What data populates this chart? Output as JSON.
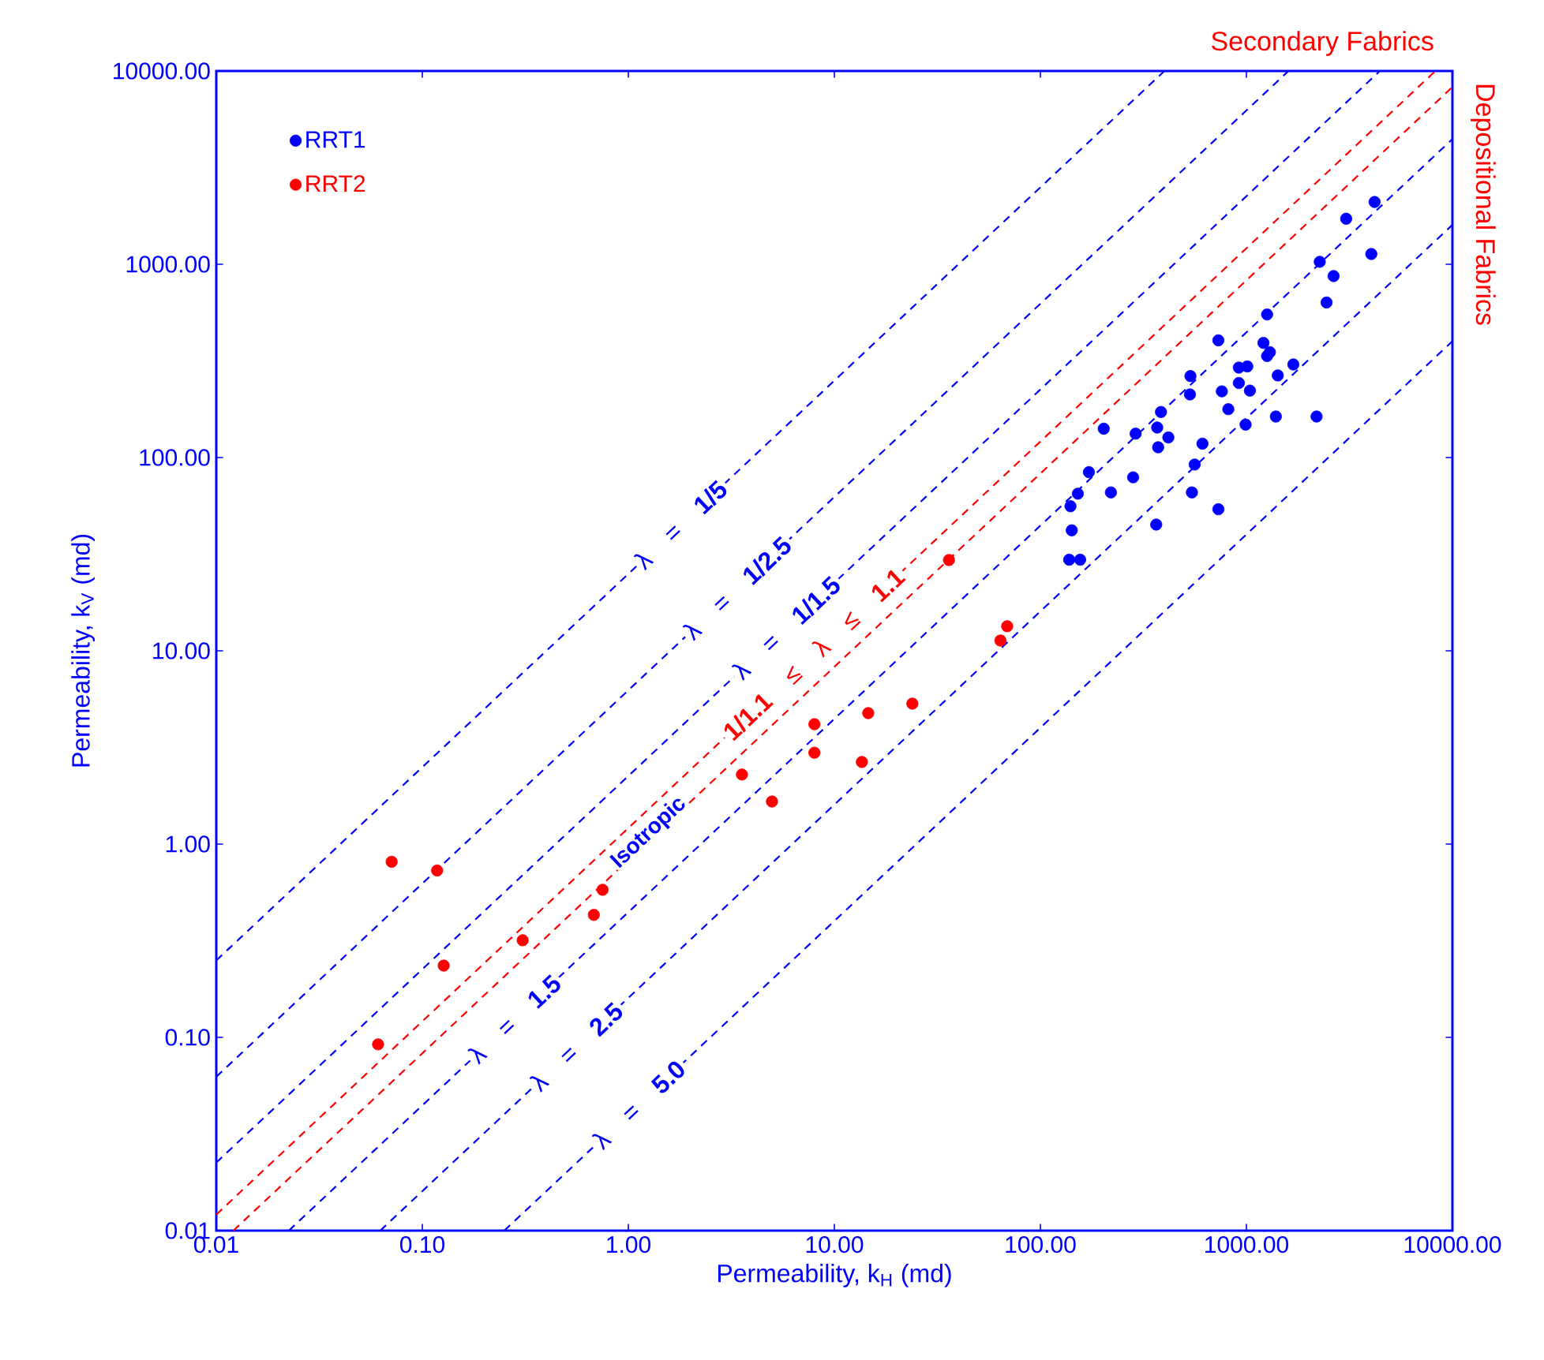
{
  "chart_data": {
    "type": "scatter",
    "xlabel": "Permeability, k$_{H}$ (md)",
    "ylabel": "Permeability, k$_{V}$ (md)",
    "log": "xy",
    "grid": false,
    "marker": "circle",
    "legend": "top left",
    "xlim": [
      0.01,
      10000
    ],
    "ylim": [
      0.01,
      10000
    ],
    "xticks": [
      {
        "value": 0.01,
        "label": "0.01"
      },
      {
        "value": 0.1,
        "label": "0.10"
      },
      {
        "value": 1,
        "label": "1.00"
      },
      {
        "value": 10,
        "label": "10.00"
      },
      {
        "value": 100,
        "label": "100.00"
      },
      {
        "value": 1000,
        "label": "1000.00"
      },
      {
        "value": 10000,
        "label": "10000.00"
      }
    ],
    "yticks": [
      {
        "value": 0.01,
        "label": "0.01"
      },
      {
        "value": 0.1,
        "label": "0.10"
      },
      {
        "value": 1,
        "label": "1.00"
      },
      {
        "value": 10,
        "label": "10.00"
      },
      {
        "value": 100,
        "label": "100.00"
      },
      {
        "value": 1000,
        "label": "1000.00"
      },
      {
        "value": 10000,
        "label": "10000.00"
      }
    ],
    "series": [
      {
        "name": "RRT1",
        "color": "#0000ff",
        "x": [
          4190,
          3050,
          4040,
          2270,
          2650,
          2450,
          1260,
          731,
          1210,
          1300,
          1260,
          1690,
          919,
          1010,
          535,
          1420,
          919,
          760,
          1040,
          532,
          817,
          385,
          1390,
          2190,
          991,
          203,
          290,
          369,
          418,
          373,
          612,
          561,
          172,
          282,
          152,
          220,
          544,
          140,
          731,
          142,
          365,
          138,
          156
        ],
        "values": [
          2100,
          1720,
          1130,
          1030,
          869,
          634,
          550,
          404,
          392,
          351,
          335,
          303,
          292,
          296,
          264,
          266,
          243,
          220,
          222,
          212,
          178,
          172,
          163,
          163,
          148,
          141,
          133,
          143,
          127,
          113,
          118,
          92,
          84,
          79,
          65,
          66,
          66,
          56,
          54,
          42,
          45,
          29.6,
          29.6
        ]
      },
      {
        "name": "RRT2",
        "color": "#ff0000",
        "x": [
          0.061,
          0.071,
          0.118,
          0.127,
          0.307,
          0.68,
          0.75,
          3.56,
          4.98,
          8.0,
          8.0,
          13.6,
          14.6,
          23.9,
          36,
          69,
          64
        ],
        "values": [
          0.092,
          0.81,
          0.73,
          0.235,
          0.318,
          0.43,
          0.58,
          2.29,
          1.66,
          4.17,
          2.97,
          2.66,
          4.76,
          5.33,
          29.5,
          13.4,
          11.3
        ]
      },
      {
        "type": "line",
        "name": "λ = **1/5**",
        "color": "#0000ff",
        "line_style": "dashed",
        "marker": "none",
        "x": [
          0.01,
          400
        ],
        "values": [
          0.25,
          10000
        ]
      },
      {
        "type": "line",
        "name": "λ = **1/2.5**",
        "color": "#0000ff",
        "line_style": "dashed",
        "marker": "none",
        "x": [
          0.01,
          1600
        ],
        "values": [
          0.0625,
          10000
        ]
      },
      {
        "type": "line",
        "name": "λ = **1/1.5**",
        "color": "#0000ff",
        "line_style": "dashed",
        "marker": "none",
        "x": [
          0.01,
          4444
        ],
        "values": [
          0.0225,
          10000
        ]
      },
      {
        "type": "line",
        "name": "**1/1.1** ≤ λ ≤ **1.1**",
        "color": "#ff0000",
        "line_style": "dashed",
        "marker": "none",
        "x": [
          0.01,
          8264
        ],
        "values": [
          0.0121,
          10000
        ]
      },
      {
        "type": "line",
        "color": "#ff0000",
        "line_style": "dashed",
        "marker": "none",
        "x": [
          0.0121,
          10000
        ],
        "values": [
          0.01,
          8264
        ]
      },
      {
        "type": "line",
        "name": "λ = **1.5**",
        "color": "#0000ff",
        "line_style": "dashed",
        "marker": "none",
        "x": [
          0.0225,
          10000
        ],
        "values": [
          0.01,
          4444
        ]
      },
      {
        "type": "line",
        "name": "λ = **2.5**",
        "color": "#0000ff",
        "line_style": "dashed",
        "marker": "none",
        "x": [
          0.0625,
          10000
        ],
        "values": [
          0.01,
          1600
        ]
      },
      {
        "type": "line",
        "name": "λ = **5.0**",
        "color": "#0000ff",
        "line_style": "dashed",
        "marker": "none",
        "x": [
          0.25,
          10000
        ],
        "values": [
          0.01,
          400
        ]
      }
    ],
    "annotations": [
      "Isotropic",
      "Secondary Fabrics",
      "Depositional Fabrics"
    ]
  }
}
